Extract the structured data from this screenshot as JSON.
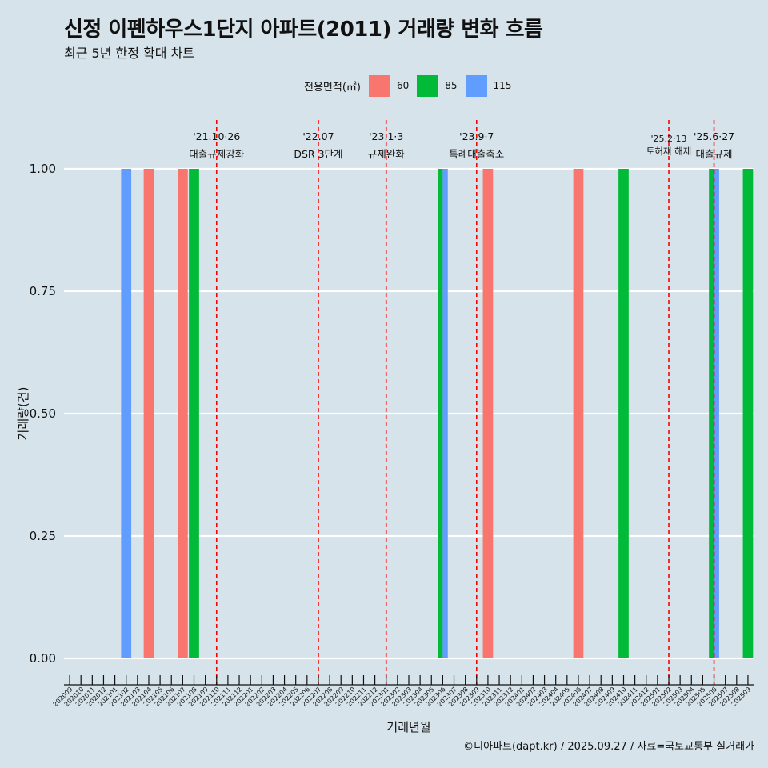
{
  "title": "신정 이펜하우스1단지 아파트(2011) 거래량 변화 흐름",
  "subtitle": "최근 5년 한정 확대 차트",
  "caption": "©디아파트(dapt.kr) / 2025.09.27 / 자료=국토교통부 실거래가",
  "legend": {
    "title": "전용면적(㎡)",
    "items": [
      {
        "label": "60",
        "color": "#f8766d"
      },
      {
        "label": "85",
        "color": "#00ba38"
      },
      {
        "label": "115",
        "color": "#619cff"
      }
    ]
  },
  "chart_data": {
    "type": "bar",
    "title": "신정 이펜하우스1단지 아파트(2011) 거래량 변화 흐름",
    "xlabel": "거래년월",
    "ylabel": "거래량(건)",
    "ylim": [
      0,
      1
    ],
    "yticks": [
      "0.00",
      "0.25",
      "0.50",
      "0.75",
      "1.00"
    ],
    "categories": [
      "202009",
      "202010",
      "202011",
      "202012",
      "202101",
      "202102",
      "202103",
      "202104",
      "202105",
      "202106",
      "202107",
      "202108",
      "202109",
      "202110",
      "202111",
      "202112",
      "202201",
      "202202",
      "202203",
      "202204",
      "202205",
      "202206",
      "202207",
      "202208",
      "202209",
      "202210",
      "202211",
      "202212",
      "202301",
      "202302",
      "202303",
      "202304",
      "202305",
      "202306",
      "202307",
      "202308",
      "202309",
      "202310",
      "202311",
      "202312",
      "202401",
      "202402",
      "202403",
      "202404",
      "202405",
      "202406",
      "202407",
      "202408",
      "202409",
      "202410",
      "202411",
      "202412",
      "202501",
      "202502",
      "202503",
      "202504",
      "202505",
      "202506",
      "202507",
      "202508",
      "202509"
    ],
    "bars": [
      {
        "month": "202102",
        "series": "115",
        "value": 1
      },
      {
        "month": "202104",
        "series": "60",
        "value": 1
      },
      {
        "month": "202107",
        "series": "60",
        "value": 1
      },
      {
        "month": "202108",
        "series": "85",
        "value": 1
      },
      {
        "month": "202306",
        "series": "85",
        "value": 1
      },
      {
        "month": "202306",
        "series": "115",
        "value": 1
      },
      {
        "month": "202310",
        "series": "60",
        "value": 1
      },
      {
        "month": "202406",
        "series": "60",
        "value": 1
      },
      {
        "month": "202410",
        "series": "85",
        "value": 1
      },
      {
        "month": "202506",
        "series": "85",
        "value": 1
      },
      {
        "month": "202506",
        "series": "115",
        "value": 1
      },
      {
        "month": "202509",
        "series": "85",
        "value": 1
      }
    ],
    "series_colors": {
      "60": "#f8766d",
      "85": "#00ba38",
      "115": "#619cff"
    },
    "events": [
      {
        "month": "202110",
        "date": "'21.10·26",
        "label": "대출규제강화"
      },
      {
        "month": "202207",
        "date": "'22.07",
        "label": "DSR 3단계"
      },
      {
        "month": "202301",
        "date": "'23.1·3",
        "label": "규제완화"
      },
      {
        "month": "202309",
        "date": "'23.9·7",
        "label": "특례대출축소"
      },
      {
        "month": "202502",
        "date": "'25.2·13",
        "label": "토허제 해제"
      },
      {
        "month": "202506",
        "date": "'25.6·27",
        "label": "대출규제"
      }
    ],
    "event_line_color": "#ff0000"
  }
}
